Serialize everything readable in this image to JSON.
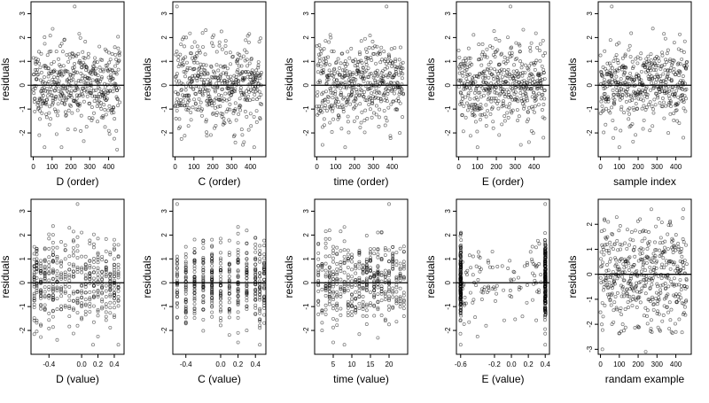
{
  "chart_data": [
    {
      "type": "scatter",
      "xlabel": "D (order)",
      "ylabel": "residuals",
      "xlim": [
        -12,
        482
      ],
      "ylim": [
        -3.0,
        3.5
      ],
      "xticks": [
        0,
        100,
        200,
        300,
        400
      ],
      "xtick_labels": [
        "0",
        "100",
        "200",
        "300",
        "400"
      ],
      "yticks": [
        -2,
        -1,
        0,
        1,
        2,
        3
      ],
      "ytick_labels": [
        "-2",
        "-1",
        "0",
        "1",
        "2",
        "3"
      ],
      "reference_line_y": 0,
      "point_count": 460,
      "x_mode": "index",
      "y_sd": 0.85,
      "seed": 11,
      "outliers": [
        [
          220,
          3.3
        ],
        [
          60,
          -2.6
        ],
        [
          150,
          -2.6
        ],
        [
          445,
          -2.7
        ]
      ]
    },
    {
      "type": "scatter",
      "xlabel": "C (order)",
      "ylabel": "residuals",
      "xlim": [
        -12,
        482
      ],
      "ylim": [
        -3.0,
        3.5
      ],
      "xticks": [
        0,
        100,
        200,
        300,
        400
      ],
      "xtick_labels": [
        "0",
        "100",
        "200",
        "300",
        "400"
      ],
      "yticks": [
        -2,
        -1,
        0,
        1,
        2,
        3
      ],
      "ytick_labels": [
        "-2",
        "-1",
        "0",
        "1",
        "2",
        "3"
      ],
      "reference_line_y": 0,
      "point_count": 460,
      "x_mode": "index",
      "y_sd": 0.85,
      "seed": 23,
      "outliers": [
        [
          10,
          3.3
        ],
        [
          360,
          -2.5
        ],
        [
          320,
          -2.4
        ],
        [
          420,
          -2.6
        ]
      ]
    },
    {
      "type": "scatter",
      "xlabel": "time (order)",
      "ylabel": "residuals",
      "xlim": [
        -12,
        482
      ],
      "ylim": [
        -3.0,
        3.5
      ],
      "xticks": [
        0,
        100,
        200,
        300,
        400
      ],
      "xtick_labels": [
        "0",
        "100",
        "200",
        "300",
        "400"
      ],
      "yticks": [
        -2,
        -1,
        0,
        1,
        2,
        3
      ],
      "ytick_labels": [
        "-2",
        "-1",
        "0",
        "1",
        "2",
        "3"
      ],
      "reference_line_y": 0,
      "point_count": 460,
      "x_mode": "index",
      "y_sd": 0.85,
      "seed": 37,
      "outliers": [
        [
          370,
          3.3
        ],
        [
          30,
          -2.5
        ],
        [
          150,
          -2.6
        ],
        [
          440,
          -2.0
        ]
      ]
    },
    {
      "type": "scatter",
      "xlabel": "E (order)",
      "ylabel": "residuals",
      "xlim": [
        -12,
        482
      ],
      "ylim": [
        -3.0,
        3.5
      ],
      "xticks": [
        0,
        100,
        200,
        300,
        400
      ],
      "xtick_labels": [
        "0",
        "100",
        "200",
        "300",
        "400"
      ],
      "yticks": [
        -2,
        -1,
        0,
        1,
        2,
        3
      ],
      "ytick_labels": [
        "-2",
        "-1",
        "0",
        "1",
        "2",
        "3"
      ],
      "reference_line_y": 0,
      "point_count": 460,
      "x_mode": "index",
      "y_sd": 0.85,
      "seed": 41,
      "outliers": [
        [
          275,
          3.3
        ],
        [
          100,
          -2.6
        ],
        [
          330,
          -2.5
        ],
        [
          450,
          -2.2
        ]
      ]
    },
    {
      "type": "scatter",
      "xlabel": "sample index",
      "ylabel": "residuals",
      "xlim": [
        -12,
        482
      ],
      "ylim": [
        -3.0,
        3.5
      ],
      "xticks": [
        0,
        100,
        200,
        300,
        400
      ],
      "xtick_labels": [
        "0",
        "100",
        "200",
        "300",
        "400"
      ],
      "yticks": [
        -2,
        -1,
        0,
        1,
        2,
        3
      ],
      "ytick_labels": [
        "-2",
        "-1",
        "0",
        "1",
        "2",
        "3"
      ],
      "reference_line_y": 0,
      "point_count": 460,
      "x_mode": "index",
      "y_sd": 0.85,
      "seed": 53,
      "outliers": [
        [
          60,
          3.3
        ],
        [
          100,
          -2.6
        ],
        [
          360,
          -2.0
        ],
        [
          440,
          -2.2
        ]
      ]
    },
    {
      "type": "scatter",
      "xlabel": "D (value)",
      "ylabel": "residuals",
      "xlim": [
        -0.62,
        0.52
      ],
      "ylim": [
        -3.0,
        3.5
      ],
      "xticks": [
        -0.4,
        0.0,
        0.2,
        0.4
      ],
      "xtick_labels": [
        "-0.4",
        "0.0",
        "0.2",
        "0.4"
      ],
      "yticks": [
        -2,
        -1,
        0,
        1,
        2,
        3
      ],
      "ytick_labels": [
        "-2",
        "-1",
        "0",
        "1",
        "2",
        "3"
      ],
      "reference_line_y": 0,
      "point_count": 460,
      "x_mode": "discrete",
      "x_levels": [
        -0.58,
        -0.55,
        -0.5,
        -0.45,
        -0.4,
        -0.35,
        -0.3,
        -0.25,
        -0.2,
        -0.15,
        -0.1,
        -0.05,
        0.0,
        0.05,
        0.1,
        0.15,
        0.2,
        0.25,
        0.3,
        0.35,
        0.4,
        0.45
      ],
      "y_sd": 0.85,
      "seed": 67,
      "outliers": [
        [
          -0.05,
          3.3
        ],
        [
          0.14,
          -2.6
        ],
        [
          0.45,
          -2.6
        ],
        [
          -0.5,
          -1.8
        ]
      ]
    },
    {
      "type": "scatter",
      "xlabel": "C (value)",
      "ylabel": "residuals",
      "xlim": [
        -0.55,
        0.52
      ],
      "ylim": [
        -3.0,
        3.5
      ],
      "xticks": [
        -0.4,
        0.0,
        0.2,
        0.4
      ],
      "xtick_labels": [
        "-0.4",
        "0.0",
        "0.2",
        "0.4"
      ],
      "yticks": [
        -2,
        -1,
        0,
        1,
        2,
        3
      ],
      "ytick_labels": [
        "-2",
        "-1",
        "0",
        "1",
        "2",
        "3"
      ],
      "reference_line_y": 0,
      "point_count": 460,
      "x_mode": "discrete",
      "x_levels": [
        -0.5,
        -0.4,
        -0.3,
        -0.2,
        -0.1,
        0.0,
        0.1,
        0.2,
        0.3,
        0.4,
        0.45,
        0.5
      ],
      "y_sd": 0.85,
      "seed": 79,
      "outliers": [
        [
          -0.5,
          3.3
        ],
        [
          0.2,
          -2.5
        ],
        [
          0.45,
          -2.6
        ],
        [
          0.3,
          -2.0
        ]
      ]
    },
    {
      "type": "scatter",
      "xlabel": "time (value)",
      "ylabel": "residuals",
      "xlim": [
        0,
        25
      ],
      "ylim": [
        -3.0,
        3.5
      ],
      "xticks": [
        5,
        10,
        15,
        20
      ],
      "xtick_labels": [
        "5",
        "10",
        "15",
        "20"
      ],
      "yticks": [
        -2,
        -1,
        0,
        1,
        2,
        3
      ],
      "ytick_labels": [
        "-2",
        "-1",
        "0",
        "1",
        "2",
        "3"
      ],
      "reference_line_y": 0,
      "point_count": 460,
      "x_mode": "discrete",
      "x_levels": [
        1,
        2,
        3,
        4,
        5,
        6,
        7,
        8,
        9,
        10,
        11,
        12,
        13,
        14,
        15,
        16,
        17,
        18,
        19,
        20,
        21,
        22,
        23,
        24
      ],
      "y_sd": 0.85,
      "seed": 83,
      "outliers": [
        [
          20,
          3.3
        ],
        [
          5,
          -2.5
        ],
        [
          8,
          -2.6
        ],
        [
          2,
          -2.0
        ]
      ]
    },
    {
      "type": "scatter",
      "xlabel": "E (value)",
      "ylabel": "residuals",
      "xlim": [
        -0.65,
        0.45
      ],
      "ylim": [
        -3.0,
        3.5
      ],
      "xticks": [
        -0.6,
        -0.2,
        0.0,
        0.2,
        0.4
      ],
      "xtick_labels": [
        "-0.6",
        "-0.2",
        "0.0",
        "0.2",
        "0.4"
      ],
      "yticks": [
        -2,
        -1,
        0,
        1,
        2,
        3
      ],
      "ytick_labels": [
        "-2",
        "-1",
        "0",
        "1",
        "2",
        "3"
      ],
      "reference_line_y": 0,
      "point_count": 460,
      "x_mode": "bimodal",
      "x_levels": [
        -0.6,
        0.4
      ],
      "y_sd": 0.85,
      "seed": 97,
      "outliers": [
        [
          0.4,
          3.3
        ],
        [
          -0.6,
          -2.6
        ],
        [
          0.4,
          -2.6
        ],
        [
          -0.3,
          -1.8
        ]
      ]
    },
    {
      "type": "scatter",
      "xlabel": "randam example",
      "ylabel": "residuals",
      "xlim": [
        -12,
        482
      ],
      "ylim": [
        -3.2,
        3.0
      ],
      "xticks": [
        0,
        100,
        200,
        300,
        400
      ],
      "xtick_labels": [
        "0",
        "100",
        "200",
        "300",
        "400"
      ],
      "yticks": [
        -3,
        -2,
        -1,
        0,
        1,
        2
      ],
      "ytick_labels": [
        "-3",
        "-2",
        "-1",
        "0",
        "1",
        "2"
      ],
      "reference_line_y": 0,
      "point_count": 460,
      "x_mode": "index",
      "y_sd": 1.05,
      "seed": 101,
      "outliers": [
        [
          10,
          -3.0
        ],
        [
          240,
          -3.1
        ],
        [
          270,
          2.6
        ],
        [
          440,
          2.6
        ]
      ]
    }
  ]
}
